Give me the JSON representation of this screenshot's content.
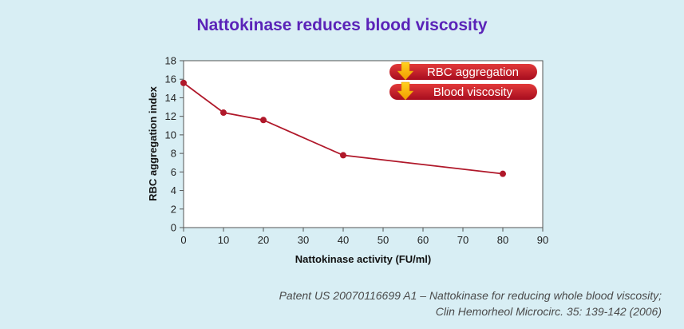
{
  "chart_data": {
    "type": "line",
    "title": "Nattokinase reduces blood viscosity",
    "xlabel": "Nattokinase activity (FU/ml)",
    "ylabel": "RBC aggregation index",
    "xlim": [
      0,
      90
    ],
    "ylim": [
      0,
      18
    ],
    "xticks": [
      0,
      10,
      20,
      30,
      40,
      50,
      60,
      70,
      80,
      90
    ],
    "yticks": [
      0,
      2,
      4,
      6,
      8,
      10,
      12,
      14,
      16,
      18
    ],
    "grid": false,
    "series": [
      {
        "x": [
          0,
          10,
          20,
          40,
          80
        ],
        "y": [
          15.6,
          12.4,
          11.6,
          7.8,
          5.8
        ],
        "color": "#b0182a"
      }
    ],
    "annotations": [
      {
        "label": "RBC aggregation",
        "icon": "down-arrow-icon"
      },
      {
        "label": "Blood viscosity",
        "icon": "down-arrow-icon"
      }
    ]
  },
  "source": {
    "line1": "Patent US 20070116699 A1 – Nattokinase for reducing whole blood viscosity;",
    "line2": "Clin Hemorheol Microcirc. 35: 139-142 (2006)"
  },
  "colors": {
    "background": "#d8eef4",
    "title": "#5a23b8",
    "line": "#b0182a",
    "badge": "#c01428",
    "arrow": "#f2b705"
  }
}
